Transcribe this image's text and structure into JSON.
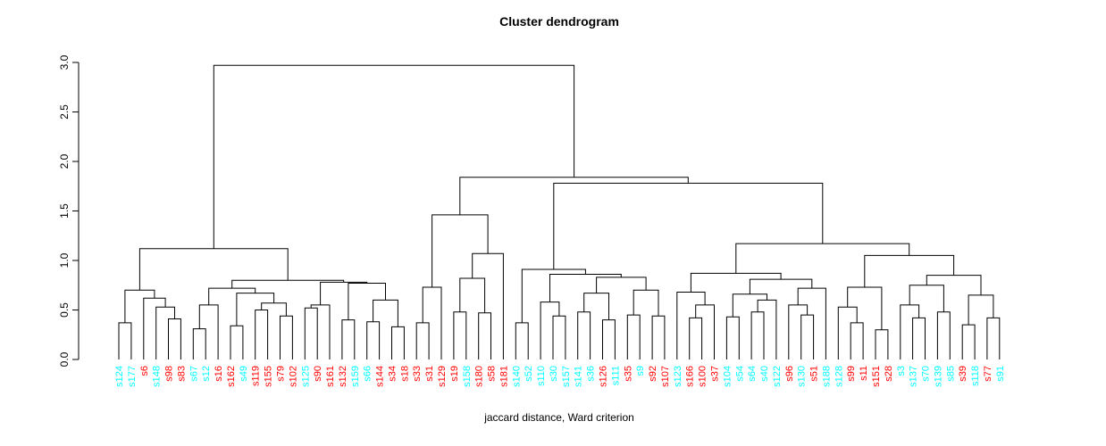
{
  "chart_data": {
    "type": "dendrogram",
    "title": "Cluster dendrogram",
    "xlabel": "jaccard distance, Ward criterion",
    "ylabel": "",
    "ylim": [
      0.0,
      3.0
    ],
    "yticks": [
      "0.0",
      "0.5",
      "1.0",
      "1.5",
      "2.0",
      "2.5",
      "3.0"
    ],
    "grid": "off",
    "leaf_colors": {
      "cyan": "#00FFFF",
      "red": "#FF0000"
    },
    "axis_color": "#000000",
    "line_color": "#000000",
    "leaves": [
      {
        "label": "s124",
        "color": "cyan"
      },
      {
        "label": "s177",
        "color": "cyan"
      },
      {
        "label": "s6",
        "color": "red"
      },
      {
        "label": "s148",
        "color": "cyan"
      },
      {
        "label": "s98",
        "color": "red"
      },
      {
        "label": "s83",
        "color": "red"
      },
      {
        "label": "s67",
        "color": "cyan"
      },
      {
        "label": "s12",
        "color": "cyan"
      },
      {
        "label": "s16",
        "color": "red"
      },
      {
        "label": "s162",
        "color": "red"
      },
      {
        "label": "s49",
        "color": "cyan"
      },
      {
        "label": "s119",
        "color": "red"
      },
      {
        "label": "s155",
        "color": "red"
      },
      {
        "label": "s79",
        "color": "red"
      },
      {
        "label": "s102",
        "color": "red"
      },
      {
        "label": "s125",
        "color": "cyan"
      },
      {
        "label": "s90",
        "color": "red"
      },
      {
        "label": "s161",
        "color": "red"
      },
      {
        "label": "s132",
        "color": "red"
      },
      {
        "label": "s159",
        "color": "cyan"
      },
      {
        "label": "s66",
        "color": "cyan"
      },
      {
        "label": "s144",
        "color": "red"
      },
      {
        "label": "s34",
        "color": "red"
      },
      {
        "label": "s18",
        "color": "red"
      },
      {
        "label": "s33",
        "color": "red"
      },
      {
        "label": "s31",
        "color": "red"
      },
      {
        "label": "s129",
        "color": "red"
      },
      {
        "label": "s19",
        "color": "red"
      },
      {
        "label": "s158",
        "color": "cyan"
      },
      {
        "label": "s180",
        "color": "red"
      },
      {
        "label": "s58",
        "color": "red"
      },
      {
        "label": "s181",
        "color": "red"
      },
      {
        "label": "s140",
        "color": "cyan"
      },
      {
        "label": "s52",
        "color": "cyan"
      },
      {
        "label": "s110",
        "color": "cyan"
      },
      {
        "label": "s30",
        "color": "cyan"
      },
      {
        "label": "s157",
        "color": "cyan"
      },
      {
        "label": "s141",
        "color": "cyan"
      },
      {
        "label": "s36",
        "color": "cyan"
      },
      {
        "label": "s126",
        "color": "red"
      },
      {
        "label": "s111",
        "color": "cyan"
      },
      {
        "label": "s35",
        "color": "red"
      },
      {
        "label": "s9",
        "color": "cyan"
      },
      {
        "label": "s92",
        "color": "red"
      },
      {
        "label": "s107",
        "color": "red"
      },
      {
        "label": "s123",
        "color": "cyan"
      },
      {
        "label": "s166",
        "color": "red"
      },
      {
        "label": "s100",
        "color": "red"
      },
      {
        "label": "s37",
        "color": "red"
      },
      {
        "label": "s104",
        "color": "cyan"
      },
      {
        "label": "s54",
        "color": "cyan"
      },
      {
        "label": "s64",
        "color": "cyan"
      },
      {
        "label": "s40",
        "color": "cyan"
      },
      {
        "label": "s122",
        "color": "cyan"
      },
      {
        "label": "s96",
        "color": "red"
      },
      {
        "label": "s130",
        "color": "cyan"
      },
      {
        "label": "s51",
        "color": "red"
      },
      {
        "label": "s188",
        "color": "cyan"
      },
      {
        "label": "s128",
        "color": "cyan"
      },
      {
        "label": "s99",
        "color": "red"
      },
      {
        "label": "s11",
        "color": "red"
      },
      {
        "label": "s151",
        "color": "red"
      },
      {
        "label": "s28",
        "color": "red"
      },
      {
        "label": "s3",
        "color": "cyan"
      },
      {
        "label": "s137",
        "color": "cyan"
      },
      {
        "label": "s70",
        "color": "cyan"
      },
      {
        "label": "s139",
        "color": "cyan"
      },
      {
        "label": "s85",
        "color": "cyan"
      },
      {
        "label": "s39",
        "color": "red"
      },
      {
        "label": "s118",
        "color": "cyan"
      },
      {
        "label": "s77",
        "color": "red"
      },
      {
        "label": "s91",
        "color": "cyan"
      }
    ],
    "merge_tree": [
      2.97,
      [
        1.12,
        [
          0.7,
          [
            0.37,
            "s124",
            "s177"
          ],
          [
            0.62,
            "s6",
            [
              0.53,
              "s148",
              [
                0.41,
                "s98",
                "s83"
              ]
            ]
          ]
        ],
        [
          0.8,
          [
            0.72,
            [
              0.55,
              [
                0.31,
                "s67",
                "s12"
              ],
              "s16"
            ],
            [
              0.67,
              [
                0.34,
                "s162",
                "s49"
              ],
              [
                0.57,
                [
                  0.5,
                  "s119",
                  "s155"
                ],
                [
                  0.44,
                  "s79",
                  "s102"
                ]
              ]
            ]
          ],
          [
            0.78,
            [
              0.55,
              [
                0.52,
                "s125",
                "s90"
              ],
              "s161"
            ],
            [
              0.77,
              [
                0.4,
                "s132",
                "s159"
              ],
              [
                0.6,
                [
                  0.38,
                  "s66",
                  "s144"
                ],
                [
                  0.33,
                  "s34",
                  "s18"
                ]
              ]
            ]
          ]
        ]
      ],
      [
        1.84,
        [
          1.46,
          [
            0.73,
            [
              0.37,
              "s33",
              "s31"
            ],
            "s129"
          ],
          [
            1.07,
            [
              0.82,
              [
                0.48,
                "s19",
                "s158"
              ],
              [
                0.47,
                "s180",
                "s58"
              ]
            ],
            "s181"
          ]
        ],
        [
          1.78,
          [
            0.91,
            [
              0.37,
              "s140",
              "s52"
            ],
            [
              0.86,
              [
                0.58,
                "s110",
                [
                  0.44,
                  "s30",
                  "s157"
                ]
              ],
              [
                0.83,
                [
                  0.67,
                  [
                    0.48,
                    "s141",
                    "s36"
                  ],
                  [
                    0.4,
                    "s126",
                    "s111"
                  ]
                ],
                [
                  0.7,
                  [
                    0.45,
                    "s35",
                    "s9"
                  ],
                  [
                    0.44,
                    "s92",
                    "s107"
                  ]
                ]
              ]
            ]
          ],
          [
            1.17,
            [
              0.87,
              [
                0.68,
                "s123",
                [
                  0.55,
                  [
                    0.42,
                    "s166",
                    "s100"
                  ],
                  "s37"
                ]
              ],
              [
                0.81,
                [
                  0.66,
                  [
                    0.43,
                    "s104",
                    "s54"
                  ],
                  [
                    0.6,
                    [
                      0.48,
                      "s64",
                      "s40"
                    ],
                    "s122"
                  ]
                ],
                [
                  0.72,
                  [
                    0.55,
                    "s96",
                    [
                      0.45,
                      "s130",
                      "s51"
                    ]
                  ],
                  "s188"
                ]
              ]
            ],
            [
              1.05,
              [
                0.73,
                [
                  0.53,
                  "s128",
                  [
                    0.37,
                    "s99",
                    "s11"
                  ]
                ],
                [
                  0.3,
                  "s151",
                  "s28"
                ]
              ],
              [
                0.85,
                [
                  0.75,
                  [
                    0.55,
                    "s3",
                    [
                      0.42,
                      "s137",
                      "s70"
                    ]
                  ],
                  [
                    0.48,
                    "s139",
                    "s85"
                  ]
                ],
                [
                  0.65,
                  [
                    0.35,
                    "s39",
                    "s118"
                  ],
                  [
                    0.42,
                    "s77",
                    "s91"
                  ]
                ]
              ]
            ]
          ]
        ]
      ]
    ]
  }
}
